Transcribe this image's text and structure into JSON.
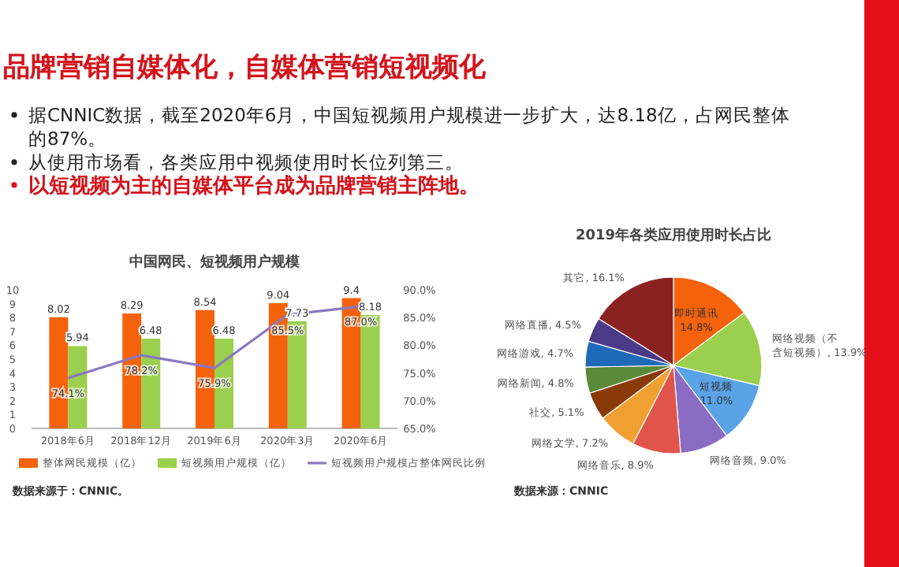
{
  "chart_data": [
    {
      "type": "other",
      "title": "品牌营销自媒体化，自媒体营销短视频化",
      "annotations": [
        "据CNNIC数据，截至2020年6月，中国短视频用户规模进一步扩大，达8.18亿，占网民整体的87%。",
        "从使用市场看，各类应用中视频使用时长位列第三。",
        "以短视频为主的自媒体平台成为品牌营销主阵地。"
      ]
    },
    {
      "type": "bar",
      "title": "中国网民、短视频用户规模",
      "categories": [
        "2018年6月",
        "2018年12月",
        "2019年6月",
        "2020年3月",
        "2020年6月"
      ],
      "series": [
        {
          "name": "整体网民规模（亿）",
          "color": "#f4620c",
          "values": [
            8.02,
            8.29,
            8.54,
            9.04,
            9.4
          ],
          "value_labels": [
            "8.02",
            "8.29",
            "8.54",
            "9.04",
            "9.4"
          ]
        },
        {
          "name": "短视频用户规模（亿）",
          "color": "#9bcf4e",
          "values": [
            5.94,
            6.48,
            6.48,
            7.73,
            8.18
          ],
          "value_labels": [
            "5.94",
            "6.48",
            "6.48",
            "7.73",
            "8.18"
          ]
        },
        {
          "name": "短视频用户规模占整体网民比例",
          "type": "line",
          "axis": "y2",
          "color": "#8a78c0",
          "values": [
            74.1,
            78.2,
            75.9,
            85.5,
            87.0
          ],
          "value_labels": [
            "74.1%",
            "78.2%",
            "75.9%",
            "85.5%",
            "87.0%"
          ]
        }
      ],
      "ylim": [
        0,
        10
      ],
      "yticks": [
        0,
        1,
        2,
        3,
        4,
        5,
        6,
        7,
        8,
        9,
        10
      ],
      "y2lim": [
        65,
        90
      ],
      "y2ticks": [
        {
          "value": 65,
          "label": "65.0%"
        },
        {
          "value": 70,
          "label": "70.0%"
        },
        {
          "value": 75,
          "label": "75.0%"
        },
        {
          "value": 80,
          "label": "80.0%"
        },
        {
          "value": 85,
          "label": "85.0%"
        },
        {
          "value": 90,
          "label": "90.0%"
        }
      ],
      "legend": "bottom",
      "grid": false,
      "annotations": [
        "数据来源于：CNNIC。"
      ]
    },
    {
      "type": "pie",
      "title": "2019年各类应用使用时长占比",
      "categories": [
        "即时通讯",
        "网络视频（不含短视频）",
        "短视频",
        "网络音频",
        "网络音乐",
        "网络文学",
        "社交",
        "网络新闻",
        "网络游戏",
        "网络直播",
        "其它"
      ],
      "values": [
        14.8,
        13.9,
        11.0,
        9.0,
        8.9,
        7.2,
        5.1,
        4.8,
        4.7,
        4.5,
        16.1
      ],
      "value_labels": [
        "14.8%",
        "13.9%",
        "11.0%",
        "9.0%",
        "8.9%",
        "7.2%",
        "5.1%",
        "4.8%",
        "4.7%",
        "4.5%",
        "16.1%"
      ],
      "colors": [
        "#f4620c",
        "#9bcf4e",
        "#5aa3e6",
        "#8a6cc4",
        "#e0544a",
        "#f0a030",
        "#8a3a08",
        "#5a8a3a",
        "#1f6ab8",
        "#4a3a88",
        "#8b2222"
      ],
      "annotations": [
        "数据来源：CNNIC"
      ]
    }
  ]
}
